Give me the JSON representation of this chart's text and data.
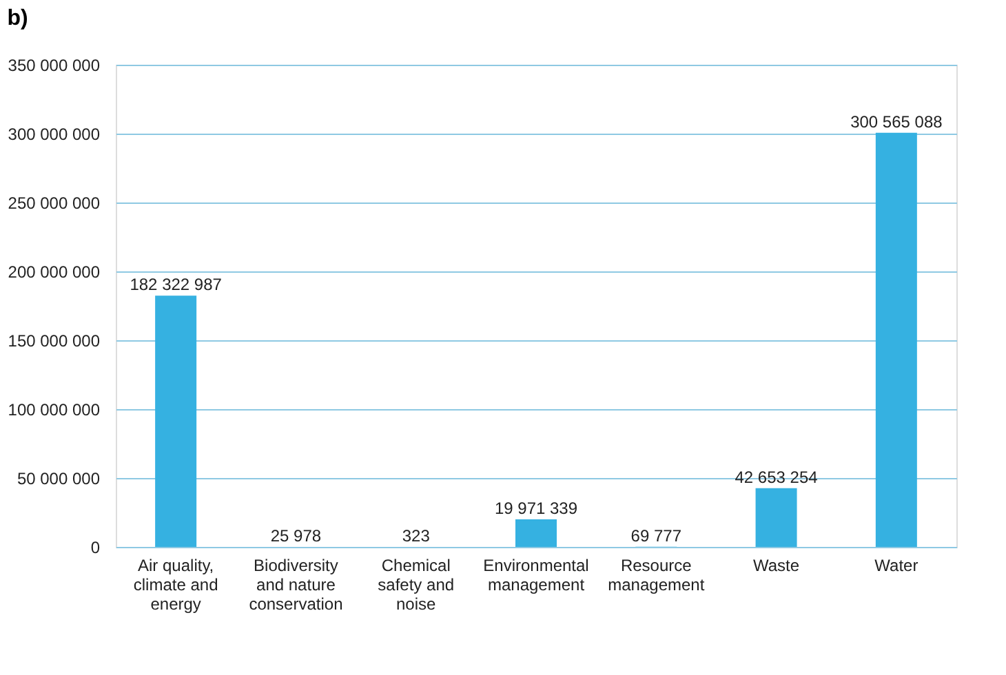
{
  "chart_data": {
    "type": "bar",
    "title": "b)",
    "categories": [
      "Air quality, climate and energy",
      "Biodiversity and nature conservation",
      "Chemical safety and noise",
      "Environmental management",
      "Resource management",
      "Waste",
      "Water"
    ],
    "values": [
      182322987,
      25978,
      323,
      19971339,
      69777,
      42653254,
      300565088
    ],
    "value_labels": [
      "182 322 987",
      "25 978",
      "323",
      "19 971 339",
      "69 777",
      "42 653 254",
      "300 565 088"
    ],
    "color": "#35b1e1",
    "ylim": [
      0,
      350000000
    ],
    "yticks": [
      {
        "value": 0,
        "label": "0"
      },
      {
        "value": 50000000,
        "label": "50 000 000"
      },
      {
        "value": 100000000,
        "label": "100 000 000"
      },
      {
        "value": 150000000,
        "label": "150 000 000"
      },
      {
        "value": 200000000,
        "label": "200 000 000"
      },
      {
        "value": 250000000,
        "label": "250 000 000"
      },
      {
        "value": 300000000,
        "label": "300 000 000"
      },
      {
        "value": 350000000,
        "label": "350 000 000"
      }
    ],
    "grid": "y"
  }
}
